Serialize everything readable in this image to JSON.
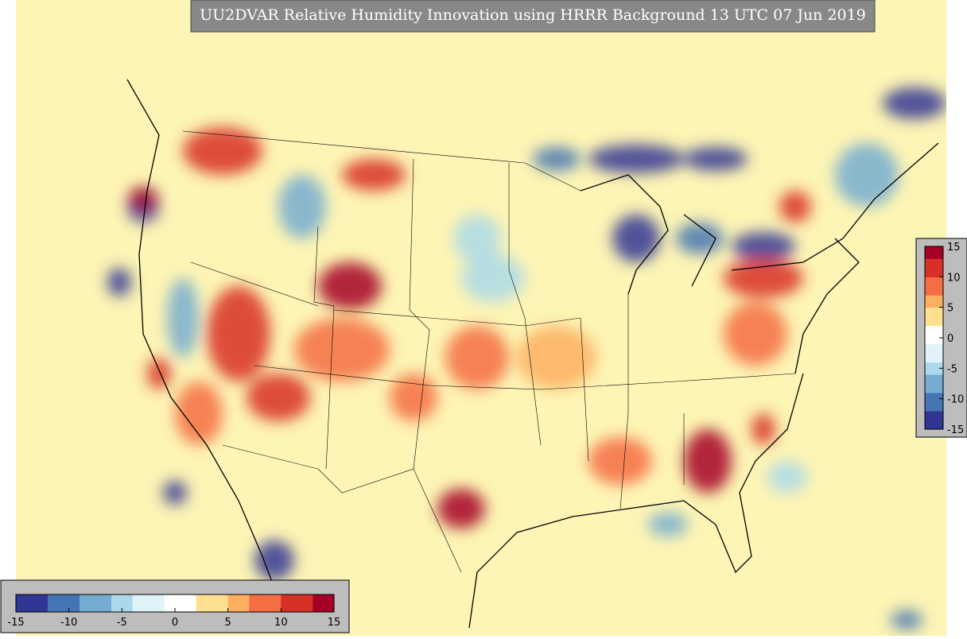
{
  "title": "UU2DVAR Relative Humidity Innovation using HRRR Background 13 UTC 07 Jun 2019",
  "colormap": [
    "#313695",
    "#4575b4",
    "#74add1",
    "#abd9e9",
    "#e0f3f8",
    "#ffffff",
    "#fee090",
    "#fdae61",
    "#f46d43",
    "#d73027",
    "#a50026"
  ],
  "horizontal_colorbar": {
    "lim": [
      -15,
      15
    ],
    "ticks": [
      -15,
      -10,
      -5,
      0,
      5,
      10,
      15
    ]
  },
  "vertical_colorbar": {
    "lim": [
      -15,
      15
    ],
    "ticks": [
      15,
      10,
      5,
      0,
      -5,
      -10,
      -15
    ]
  }
}
